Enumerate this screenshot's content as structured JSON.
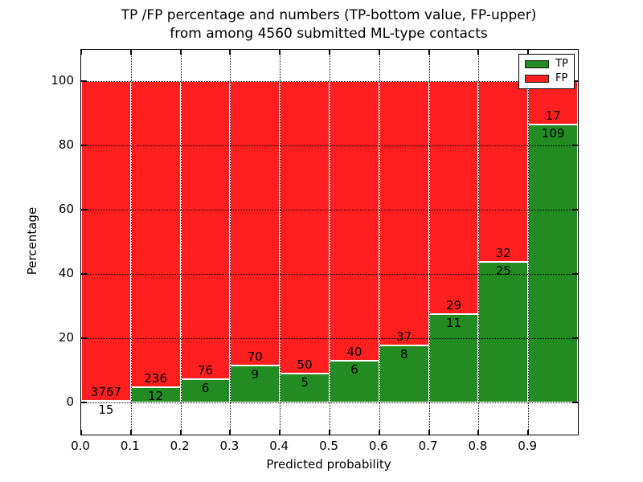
{
  "chart_data": {
    "type": "bar",
    "stacked": true,
    "normalized_to": 100,
    "title_lines": [
      "TP /FP percentage and numbers (TP-bottom value, FP-upper)",
      "from among 4560 submitted ML-type contacts"
    ],
    "xlabel": "Predicted probability",
    "ylabel": "Percentage",
    "total_submitted": 4560,
    "xlim": [
      0.0,
      1.0
    ],
    "ylim": [
      -10,
      110
    ],
    "bin_width": 0.1,
    "bins_start": [
      0.0,
      0.1,
      0.2,
      0.3,
      0.4,
      0.5,
      0.6,
      0.7,
      0.8,
      0.9
    ],
    "xtick_labels": [
      "0.0",
      "0.1",
      "0.2",
      "0.3",
      "0.4",
      "0.5",
      "0.6",
      "0.7",
      "0.8",
      "0.9"
    ],
    "ytick_values": [
      0,
      20,
      40,
      60,
      80,
      100
    ],
    "grid": {
      "on": true,
      "style": "dotted",
      "color": "#000000"
    },
    "series": [
      {
        "name": "TP",
        "color": "#228b22",
        "counts": [
          15,
          12,
          6,
          9,
          5,
          6,
          8,
          11,
          25,
          109
        ],
        "pct": [
          0.4,
          4.84,
          7.32,
          11.39,
          9.09,
          13.04,
          17.78,
          27.5,
          43.86,
          86.51
        ]
      },
      {
        "name": "FP",
        "color": "#ff1f1f",
        "counts": [
          3767,
          236,
          76,
          70,
          50,
          40,
          37,
          29,
          32,
          17
        ],
        "pct": [
          99.6,
          95.16,
          92.68,
          88.61,
          90.91,
          86.96,
          82.22,
          72.5,
          56.14,
          13.49
        ]
      }
    ],
    "legend": {
      "position": "upper right",
      "entries": [
        {
          "label": "TP",
          "color": "#228b22"
        },
        {
          "label": "FP",
          "color": "#ff1f1f"
        }
      ]
    }
  }
}
